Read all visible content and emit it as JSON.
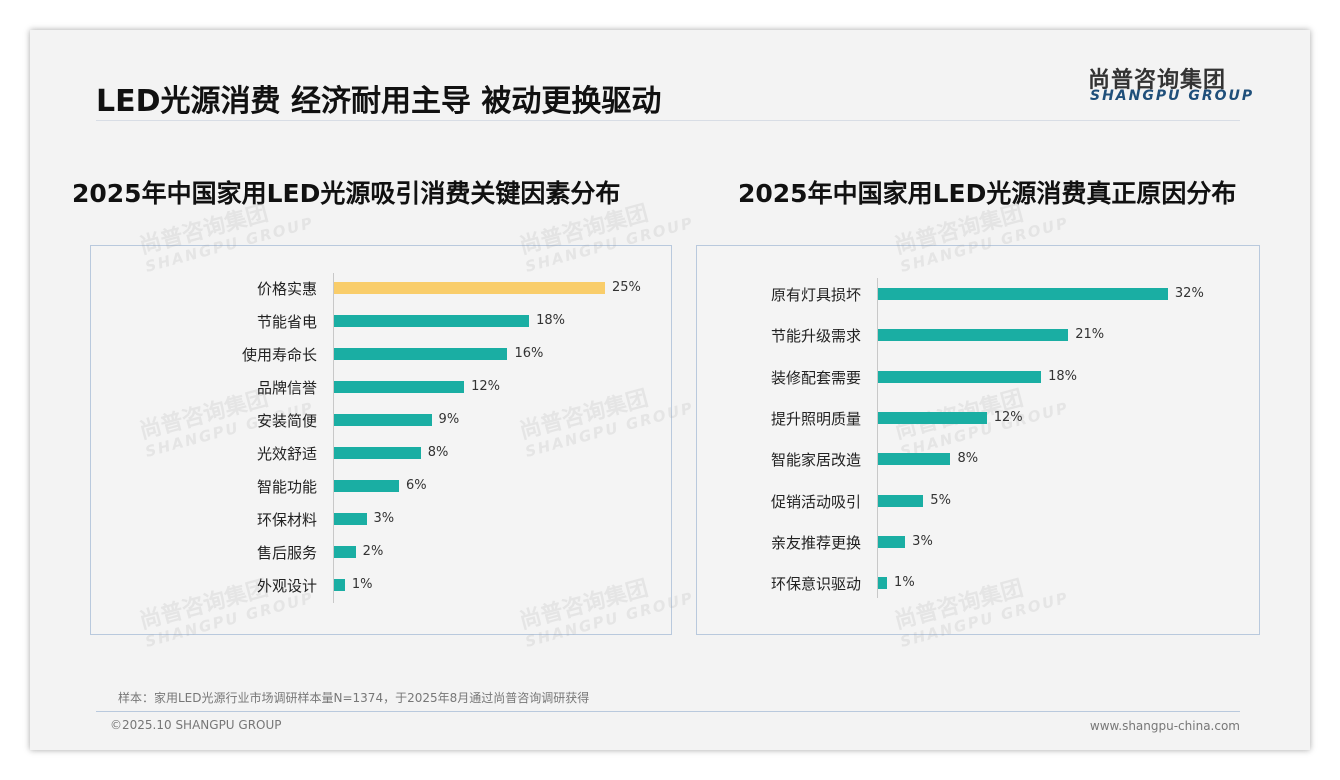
{
  "header": {
    "title": "LED光源消费 经济耐用主导 被动更换驱动",
    "logo_cn": "尚普咨询集团",
    "logo_en": "SHANGPU GROUP"
  },
  "watermark": {
    "cn": "尚普咨询集团",
    "en": "SHANGPU GROUP"
  },
  "colors": {
    "teal": "#1aaea3",
    "highlight": "#f9cd6a"
  },
  "chart_data": [
    {
      "type": "bar",
      "orientation": "horizontal",
      "title": "2025年中国家用LED光源吸引消费关键因素分布",
      "unit": "%",
      "categories": [
        "价格实惠",
        "节能省电",
        "使用寿命长",
        "品牌信誉",
        "安装简便",
        "光效舒适",
        "智能功能",
        "环保材料",
        "售后服务",
        "外观设计"
      ],
      "values": [
        25,
        18,
        16,
        12,
        9,
        8,
        6,
        3,
        2,
        1
      ],
      "labels": [
        "25%",
        "18%",
        "16%",
        "12%",
        "9%",
        "8%",
        "6%",
        "3%",
        "2%",
        "1%"
      ],
      "highlight_index": 0
    },
    {
      "type": "bar",
      "orientation": "horizontal",
      "title": "2025年中国家用LED光源消费真正原因分布",
      "unit": "%",
      "categories": [
        "原有灯具损坏",
        "节能升级需求",
        "装修配套需要",
        "提升照明质量",
        "智能家居改造",
        "促销活动吸引",
        "亲友推荐更换",
        "环保意识驱动"
      ],
      "values": [
        32,
        21,
        18,
        12,
        8,
        5,
        3,
        1
      ],
      "labels": [
        "32%",
        "21%",
        "18%",
        "12%",
        "8%",
        "5%",
        "3%",
        "1%"
      ],
      "highlight_index": -1
    }
  ],
  "footer": {
    "note": "样本：家用LED光源行业市场调研样本量N=1374，于2025年8月通过尚普咨询调研获得",
    "copyright": "©2025.10 SHANGPU GROUP",
    "url": "www.shangpu-china.com"
  }
}
